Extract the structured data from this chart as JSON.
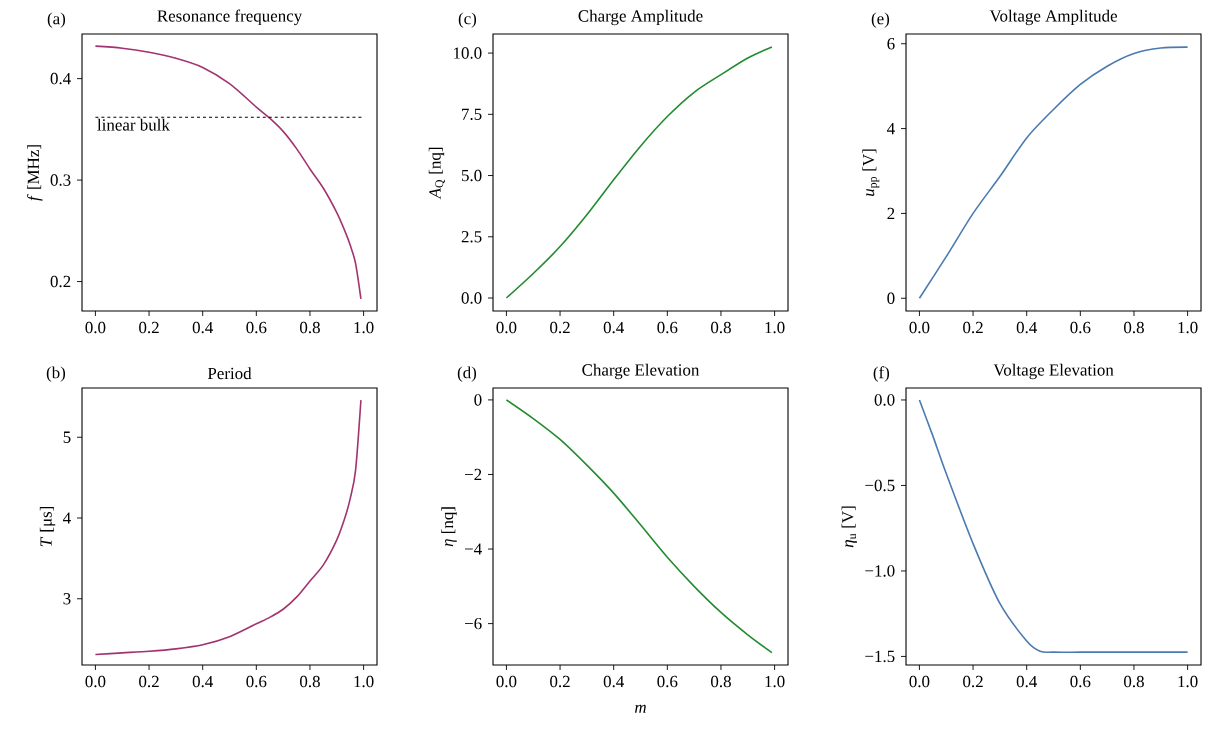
{
  "chart_data": [
    {
      "type": "line",
      "title": "Resonance frequency",
      "ylabel": "*f* [MHz]",
      "annotations": [
        "(a)"
      ],
      "x": [
        0,
        0.1,
        0.2,
        0.3,
        0.4,
        0.5,
        0.6,
        0.65,
        0.7,
        0.75,
        0.8,
        0.85,
        0.9,
        0.93,
        0.95,
        0.97,
        0.99
      ],
      "series": [
        {
          "color": "#a23370",
          "values": [
            0.432,
            0.43,
            0.426,
            0.42,
            0.411,
            0.395,
            0.372,
            0.361,
            0.348,
            0.331,
            0.311,
            0.292,
            0.268,
            0.25,
            0.236,
            0.218,
            0.183
          ]
        }
      ],
      "ref_lines": [
        {
          "axis": "y",
          "value": 0.362,
          "label": "linear bulk",
          "line_style": "dashed",
          "color": "#000000"
        }
      ],
      "xlim": [
        -0.05,
        1.05
      ],
      "ylim": [
        0.171,
        0.444
      ],
      "xticks": [
        {
          "value": 0,
          "label": "0.0"
        },
        {
          "value": 0.2,
          "label": "0.2"
        },
        {
          "value": 0.4,
          "label": "0.4"
        },
        {
          "value": 0.6,
          "label": "0.6"
        },
        {
          "value": 0.8,
          "label": "0.8"
        },
        {
          "value": 1,
          "label": "1.0"
        }
      ],
      "yticks": [
        {
          "value": 0.2,
          "label": "0.2"
        },
        {
          "value": 0.3,
          "label": "0.3"
        },
        {
          "value": 0.4,
          "label": "0.4"
        }
      ]
    },
    {
      "type": "line",
      "title": "Charge Amplitude",
      "ylabel": "*A*$_{Q}$ [nq]",
      "annotations": [
        "(c)"
      ],
      "x": [
        0,
        0.1,
        0.2,
        0.3,
        0.4,
        0.5,
        0.6,
        0.7,
        0.8,
        0.9,
        0.99
      ],
      "series": [
        {
          "color": "#238b2f",
          "values": [
            0,
            1.0,
            2.1,
            3.4,
            4.83,
            6.2,
            7.41,
            8.4,
            9.12,
            9.8,
            10.25
          ]
        }
      ],
      "xlim": [
        -0.05,
        1.05
      ],
      "ylim": [
        -0.53,
        10.78
      ],
      "xticks": [
        {
          "value": 0,
          "label": "0.0"
        },
        {
          "value": 0.2,
          "label": "0.2"
        },
        {
          "value": 0.4,
          "label": "0.4"
        },
        {
          "value": 0.6,
          "label": "0.6"
        },
        {
          "value": 0.8,
          "label": "0.8"
        },
        {
          "value": 1,
          "label": "1.0"
        }
      ],
      "yticks": [
        {
          "value": 0,
          "label": "0.0"
        },
        {
          "value": 2.5,
          "label": "2.5"
        },
        {
          "value": 5,
          "label": "5.0"
        },
        {
          "value": 7.5,
          "label": "7.5"
        },
        {
          "value": 10,
          "label": "10.0"
        }
      ]
    },
    {
      "type": "line",
      "title": "Voltage Amplitude",
      "ylabel": "*u*$_{pp}$ [V]",
      "annotations": [
        "(e)"
      ],
      "x": [
        0,
        0.1,
        0.2,
        0.3,
        0.4,
        0.5,
        0.6,
        0.7,
        0.8,
        0.9,
        1.0
      ],
      "series": [
        {
          "color": "#4a7ab0",
          "values": [
            0,
            0.98,
            2.0,
            2.87,
            3.78,
            4.45,
            5.04,
            5.47,
            5.77,
            5.9,
            5.92
          ]
        }
      ],
      "xlim": [
        -0.05,
        1.05
      ],
      "ylim": [
        -0.3,
        6.23
      ],
      "xticks": [
        {
          "value": 0,
          "label": "0.0"
        },
        {
          "value": 0.2,
          "label": "0.2"
        },
        {
          "value": 0.4,
          "label": "0.4"
        },
        {
          "value": 0.6,
          "label": "0.6"
        },
        {
          "value": 0.8,
          "label": "0.8"
        },
        {
          "value": 1,
          "label": "1.0"
        }
      ],
      "yticks": [
        {
          "value": 0,
          "label": "0"
        },
        {
          "value": 2,
          "label": "2"
        },
        {
          "value": 4,
          "label": "4"
        },
        {
          "value": 6,
          "label": "6"
        }
      ]
    },
    {
      "type": "line",
      "title": "Period",
      "ylabel": "*T* [μs]",
      "annotations": [
        "(b)"
      ],
      "x": [
        0,
        0.1,
        0.2,
        0.3,
        0.4,
        0.5,
        0.6,
        0.65,
        0.7,
        0.75,
        0.8,
        0.85,
        0.9,
        0.93,
        0.95,
        0.97,
        0.99
      ],
      "series": [
        {
          "color": "#a23370",
          "values": [
            2.31,
            2.33,
            2.35,
            2.38,
            2.43,
            2.53,
            2.69,
            2.77,
            2.87,
            3.02,
            3.22,
            3.42,
            3.73,
            4.0,
            4.24,
            4.59,
            5.46
          ]
        }
      ],
      "xlim": [
        -0.05,
        1.05
      ],
      "ylim": [
        2.18,
        5.61
      ],
      "xticks": [
        {
          "value": 0,
          "label": "0.0"
        },
        {
          "value": 0.2,
          "label": "0.2"
        },
        {
          "value": 0.4,
          "label": "0.4"
        },
        {
          "value": 0.6,
          "label": "0.6"
        },
        {
          "value": 0.8,
          "label": "0.8"
        },
        {
          "value": 1,
          "label": "1.0"
        }
      ],
      "yticks": [
        {
          "value": 3,
          "label": "3"
        },
        {
          "value": 4,
          "label": "4"
        },
        {
          "value": 5,
          "label": "5"
        }
      ]
    },
    {
      "type": "line",
      "title": "Charge Elevation",
      "ylabel": "*η* [nq]",
      "xlabel": "*m*",
      "annotations": [
        "(d)"
      ],
      "x": [
        0,
        0.1,
        0.2,
        0.3,
        0.4,
        0.5,
        0.6,
        0.7,
        0.8,
        0.9,
        0.99
      ],
      "series": [
        {
          "color": "#238b2f",
          "values": [
            0,
            -0.5,
            -1.06,
            -1.75,
            -2.5,
            -3.35,
            -4.22,
            -5.0,
            -5.7,
            -6.3,
            -6.78
          ]
        }
      ],
      "xlim": [
        -0.05,
        1.05
      ],
      "ylim": [
        -7.11,
        0.32
      ],
      "xticks": [
        {
          "value": 0,
          "label": "0.0"
        },
        {
          "value": 0.2,
          "label": "0.2"
        },
        {
          "value": 0.4,
          "label": "0.4"
        },
        {
          "value": 0.6,
          "label": "0.6"
        },
        {
          "value": 0.8,
          "label": "0.8"
        },
        {
          "value": 1,
          "label": "1.0"
        }
      ],
      "yticks": [
        {
          "value": -6,
          "label": "−6"
        },
        {
          "value": -4,
          "label": "−4"
        },
        {
          "value": -2,
          "label": "−2"
        },
        {
          "value": 0,
          "label": "0"
        }
      ]
    },
    {
      "type": "line",
      "title": "Voltage Elevation",
      "ylabel": "*η*$_{u}$ [V]",
      "annotations": [
        "(f)"
      ],
      "x": [
        0,
        0.05,
        0.1,
        0.2,
        0.3,
        0.4,
        0.45,
        0.5,
        0.6,
        0.7,
        0.8,
        0.9,
        1.0
      ],
      "series": [
        {
          "color": "#4a7ab0",
          "values": [
            0,
            -0.21,
            -0.43,
            -0.84,
            -1.19,
            -1.41,
            -1.47,
            -1.475,
            -1.475,
            -1.475,
            -1.475,
            -1.475,
            -1.475
          ]
        }
      ],
      "xlim": [
        -0.05,
        1.05
      ],
      "ylim": [
        -1.55,
        0.07
      ],
      "xticks": [
        {
          "value": 0,
          "label": "0.0"
        },
        {
          "value": 0.2,
          "label": "0.2"
        },
        {
          "value": 0.4,
          "label": "0.4"
        },
        {
          "value": 0.6,
          "label": "0.6"
        },
        {
          "value": 0.8,
          "label": "0.8"
        },
        {
          "value": 1,
          "label": "1.0"
        }
      ],
      "yticks": [
        {
          "value": -1.5,
          "label": "−1.5"
        },
        {
          "value": -1.0,
          "label": "−1.0"
        },
        {
          "value": -0.5,
          "label": "−0.5"
        },
        {
          "value": 0.0,
          "label": "0.0"
        }
      ]
    }
  ]
}
